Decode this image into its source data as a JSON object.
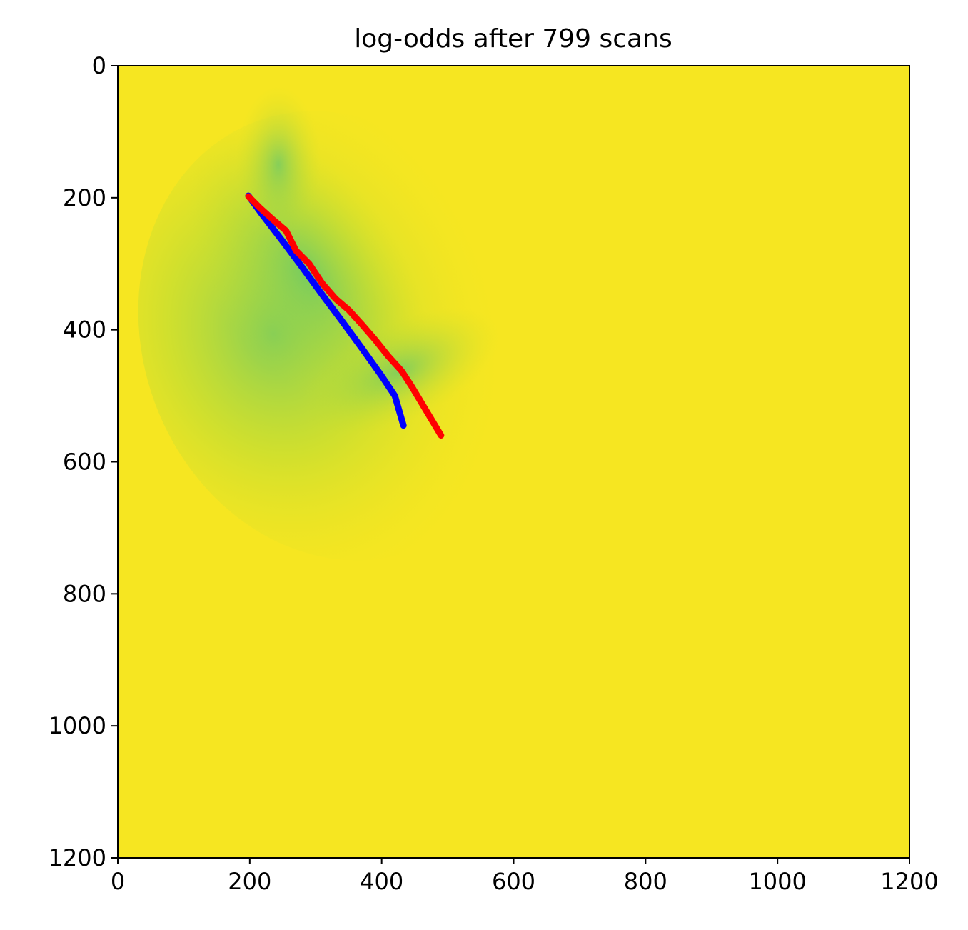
{
  "chart_data": {
    "type": "heatmap",
    "title": "log-odds after 799 scans",
    "xlabel": "",
    "ylabel": "",
    "xlim": [
      0,
      1200
    ],
    "ylim": [
      1200,
      0
    ],
    "y_axis_inverted": true,
    "grid": false,
    "legend": "none",
    "xticks": [
      "0",
      "200",
      "400",
      "600",
      "800",
      "1000",
      "1200"
    ],
    "yticks": [
      "0",
      "200",
      "400",
      "600",
      "800",
      "1000",
      "1200"
    ],
    "background_color": "#f6e621",
    "colormap": "viridis",
    "series": [
      {
        "color": "#0000ff",
        "x": [
          198,
          220,
          250,
          280,
          310,
          340,
          370,
          400,
          420,
          433
        ],
        "y": [
          197,
          227,
          266,
          306,
          347,
          387,
          428,
          470,
          500,
          545
        ]
      },
      {
        "color": "#ff0000",
        "x": [
          198,
          215,
          235,
          255,
          270,
          290,
          310,
          330,
          350,
          370,
          390,
          410,
          430,
          445,
          460,
          475,
          490
        ],
        "y": [
          198,
          215,
          233,
          250,
          280,
          300,
          330,
          353,
          370,
          392,
          415,
          440,
          462,
          485,
          510,
          535,
          560
        ]
      }
    ]
  }
}
